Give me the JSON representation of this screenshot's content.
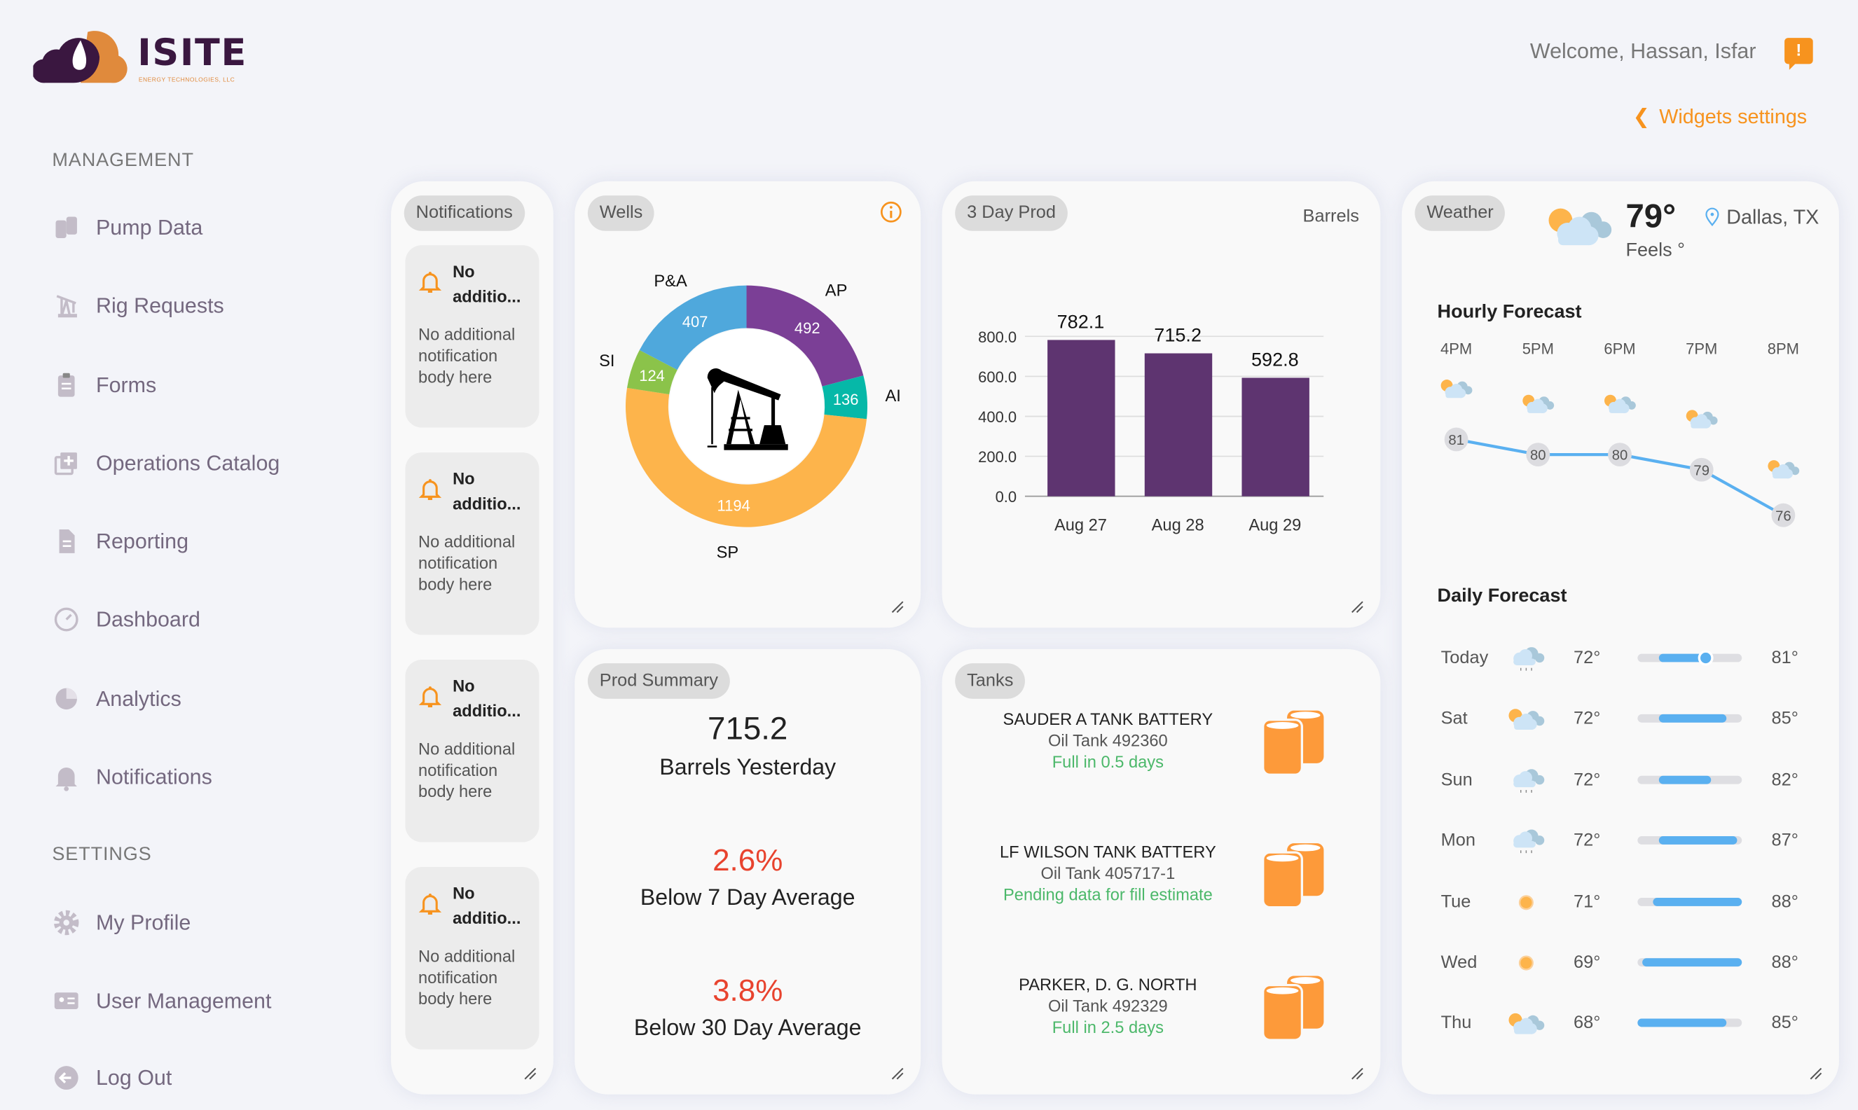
{
  "brand": {
    "name": "ISITE",
    "tagline": "ENERGY TECHNOLOGIES, LLC"
  },
  "header": {
    "welcome": "Welcome, Hassan, Isfar",
    "alert_icon": "!",
    "widgets_settings": "Widgets settings"
  },
  "colors": {
    "accent": "#f7931e",
    "brand_purple": "#3a1740",
    "bar": "#5e3470",
    "line": "#5ab0f0",
    "red": "#e8432e",
    "green": "#4cb86a"
  },
  "sidebar": {
    "management_label": "MANAGEMENT",
    "settings_label": "SETTINGS",
    "items": [
      {
        "label": "Pump Data",
        "icon": "barrels-icon"
      },
      {
        "label": "Rig Requests",
        "icon": "pumpjack-icon"
      },
      {
        "label": "Forms",
        "icon": "clipboard-icon"
      },
      {
        "label": "Operations Catalog",
        "icon": "catalog-add-icon"
      },
      {
        "label": "Reporting",
        "icon": "document-icon"
      },
      {
        "label": "Dashboard",
        "icon": "gauge-icon"
      },
      {
        "label": "Analytics",
        "icon": "pie-icon"
      },
      {
        "label": "Notifications",
        "icon": "bell-icon"
      }
    ],
    "settings_items": [
      {
        "label": "My Profile",
        "icon": "gear-icon"
      },
      {
        "label": "User Management",
        "icon": "id-card-icon"
      },
      {
        "label": "Log Out",
        "icon": "logout-icon"
      }
    ]
  },
  "notifications": {
    "title": "Notifications",
    "items": [
      {
        "title": "No additio...",
        "body": "No additional notification body here"
      },
      {
        "title": "No additio...",
        "body": "No additional notification body here"
      },
      {
        "title": "No additio...",
        "body": "No additional notification body here"
      },
      {
        "title": "No additio...",
        "body": "No additional notification body here"
      }
    ]
  },
  "wells": {
    "title": "Wells"
  },
  "prod3": {
    "title": "3 Day Prod",
    "unit": "Barrels"
  },
  "prod_summary": {
    "title": "Prod Summary",
    "value": "715.2",
    "value_label": "Barrels Yesterday",
    "pct7": "2.6%",
    "pct7_label": "Below 7 Day Average",
    "pct30": "3.8%",
    "pct30_label": "Below 30 Day Average"
  },
  "tanks": {
    "title": "Tanks",
    "items": [
      {
        "name": "SAUDER A TANK BATTERY",
        "tank": "Oil Tank 492360",
        "status": "Full in 0.5 days"
      },
      {
        "name": "LF WILSON TANK BATTERY",
        "tank": "Oil Tank 405717-1",
        "status": "Pending data for fill estimate"
      },
      {
        "name": "PARKER, D. G. NORTH",
        "tank": "Oil Tank 492329",
        "status": "Full in 2.5 days"
      }
    ]
  },
  "weather": {
    "title": "Weather",
    "temp": "79°",
    "feels": "Feels °",
    "location": "Dallas, TX",
    "condition_icon": "partly-cloudy",
    "hourly_title": "Hourly Forecast",
    "daily_title": "Daily Forecast",
    "daily": [
      {
        "day": "Today",
        "icon": "rain",
        "low": 72,
        "high": 81,
        "low_label": "72°",
        "high_label": "81°",
        "current": true
      },
      {
        "day": "Sat",
        "icon": "partly-cloudy",
        "low": 72,
        "high": 85,
        "low_label": "72°",
        "high_label": "85°"
      },
      {
        "day": "Sun",
        "icon": "rain",
        "low": 72,
        "high": 82,
        "low_label": "72°",
        "high_label": "82°"
      },
      {
        "day": "Mon",
        "icon": "rain",
        "low": 72,
        "high": 87,
        "low_label": "72°",
        "high_label": "87°"
      },
      {
        "day": "Tue",
        "icon": "sun",
        "low": 71,
        "high": 88,
        "low_label": "71°",
        "high_label": "88°"
      },
      {
        "day": "Wed",
        "icon": "sun",
        "low": 69,
        "high": 88,
        "low_label": "69°",
        "high_label": "88°"
      },
      {
        "day": "Thu",
        "icon": "partly-cloudy",
        "low": 68,
        "high": 85,
        "low_label": "68°",
        "high_label": "85°"
      }
    ]
  },
  "chart_data": [
    {
      "type": "pie",
      "variant": "donut",
      "categories": [
        "AP",
        "AI",
        "SP",
        "SI",
        "P&A"
      ],
      "values": [
        492,
        136,
        1194,
        124,
        407
      ],
      "labels": [
        "492",
        "136",
        "1194",
        "124",
        "407"
      ],
      "colors": [
        "#7b3f96",
        "#06b8a8",
        "#fdb44b",
        "#8bc34a",
        "#4fa8dc"
      ]
    },
    {
      "type": "bar",
      "categories": [
        "Aug 27",
        "Aug 28",
        "Aug 29"
      ],
      "values": [
        782.1,
        715.2,
        592.8
      ],
      "labels": [
        "782.1",
        "715.2",
        "592.8"
      ],
      "ylabel": "Barrels",
      "ylim": [
        0,
        800
      ],
      "yticks": [
        "0.0",
        "200.0",
        "400.0",
        "600.0",
        "800.0"
      ],
      "grid": true
    },
    {
      "type": "line",
      "categories": [
        "4PM",
        "5PM",
        "6PM",
        "7PM",
        "8PM"
      ],
      "values": [
        81,
        80,
        80,
        79,
        76
      ],
      "labels": [
        "81",
        "80",
        "80",
        "79",
        "76"
      ],
      "icons": [
        "partly-cloudy",
        "partly-cloudy",
        "partly-cloudy",
        "partly-cloudy",
        "partly-cloudy"
      ]
    }
  ]
}
